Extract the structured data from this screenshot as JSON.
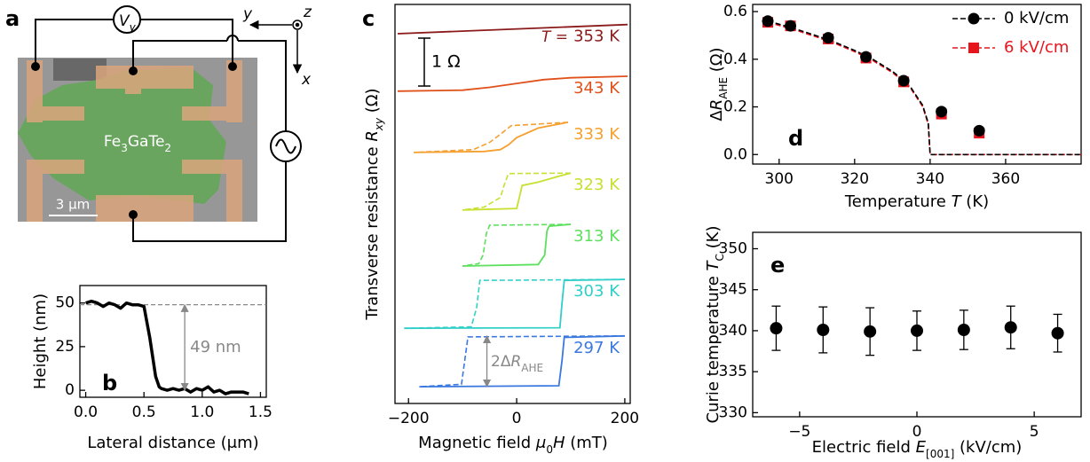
{
  "schematic": {
    "panel_label": "a",
    "voltmeter": [
      "V",
      "y"
    ],
    "material": [
      "Fe",
      "3",
      "GaTe",
      "2"
    ],
    "scale_bar": "3 μm",
    "axes": {
      "x": "x",
      "y": "y",
      "z": "z"
    }
  },
  "chart_data": [
    {
      "type": "line",
      "panel_label": "b",
      "xlabel": "Lateral distance (μm)",
      "ylabel": "Height (nm)",
      "color": "#000000",
      "x": [
        0,
        0.05,
        0.1,
        0.15,
        0.2,
        0.25,
        0.3,
        0.35,
        0.4,
        0.45,
        0.5,
        0.55,
        0.6,
        0.63,
        0.65,
        0.7,
        0.75,
        0.8,
        0.85,
        0.9,
        0.95,
        1.0,
        1.05,
        1.1,
        1.15,
        1.2,
        1.25,
        1.3,
        1.35,
        1.4
      ],
      "values": [
        50,
        51,
        50,
        48,
        50,
        49,
        47,
        50,
        49,
        49,
        48,
        30,
        8,
        2,
        1,
        0,
        1,
        0,
        1,
        -1,
        1,
        0,
        2,
        -1,
        0,
        -2,
        -1,
        -1,
        -1,
        -2
      ],
      "xlim": [
        -0.05,
        1.55
      ],
      "ylim": [
        -4,
        60
      ],
      "xticks": [
        {
          "value": 0,
          "label": "0.0"
        },
        0.5,
        {
          "value": 1,
          "label": "1.0"
        },
        1.5
      ],
      "yticks": [
        0,
        25,
        50
      ],
      "annotation": {
        "value": 49,
        "x": 0.85,
        "label": "49 nm"
      }
    },
    {
      "type": "hysteresis",
      "panel_label": "c",
      "xlabel": [
        "Magnetic field ",
        "μ",
        "0",
        "H",
        " (mT)"
      ],
      "ylabel": [
        "Transverse resistance ",
        "R",
        "xy",
        " (Ω)"
      ],
      "xlim": [
        -225,
        210
      ],
      "ylim": [
        0,
        8.33
      ],
      "xticks": [
        {
          "value": -200,
          "label": "−200"
        },
        0,
        200
      ],
      "scale_bar": {
        "value": 1,
        "label": "1 Ω"
      },
      "temperature_prefix": [
        "T",
        " ="
      ],
      "annotation": [
        "2Δ",
        "R",
        "AHE"
      ],
      "loops": [
        {
          "name": "353 K",
          "color": "#8b1a1a",
          "x_up": [
            -220,
            205
          ],
          "up": [
            7.72,
            7.91
          ]
        },
        {
          "name": "343 K",
          "color": "#e0501a",
          "x_up": [
            -220,
            -100,
            -50,
            0,
            50,
            100,
            205
          ],
          "up": [
            6.52,
            6.54,
            6.6,
            6.68,
            6.76,
            6.8,
            6.83
          ]
        },
        {
          "name": "333 K",
          "color": "#f5a030",
          "x_up": [
            -190,
            -60,
            -30,
            -15,
            0,
            40,
            95
          ],
          "up": [
            5.24,
            5.26,
            5.3,
            5.4,
            5.55,
            5.75,
            5.87
          ],
          "x_down": [
            95,
            -10,
            -30,
            -50,
            -80,
            -190
          ],
          "down": [
            5.87,
            5.8,
            5.62,
            5.45,
            5.3,
            5.24
          ]
        },
        {
          "name": "323 K",
          "color": "#c8e030",
          "x_up": [
            -100,
            0,
            5,
            10,
            40,
            80,
            100
          ],
          "up": [
            4.04,
            4.07,
            4.3,
            4.55,
            4.62,
            4.75,
            4.81
          ],
          "x_down": [
            100,
            -15,
            -22,
            -30,
            -60,
            -100
          ],
          "down": [
            4.81,
            4.8,
            4.6,
            4.3,
            4.1,
            4.04
          ]
        },
        {
          "name": "313 K",
          "color": "#5de05d",
          "x_up": [
            -100,
            40,
            52,
            56,
            60,
            100
          ],
          "up": [
            2.87,
            2.9,
            3.1,
            3.6,
            3.7,
            3.74
          ],
          "x_down": [
            100,
            -50,
            -56,
            -62,
            -70,
            -100
          ],
          "down": [
            3.74,
            3.72,
            3.55,
            3.1,
            2.92,
            2.87
          ]
        },
        {
          "name": "303 K",
          "color": "#30d0c8",
          "x_up": [
            -208,
            80,
            84,
            88,
            200
          ],
          "up": [
            1.57,
            1.58,
            2.1,
            2.57,
            2.59
          ],
          "x_down": [
            200,
            -68,
            -74,
            -84,
            -208
          ],
          "down": [
            2.59,
            2.57,
            2.0,
            1.6,
            1.57
          ]
        },
        {
          "name": "297 K",
          "color": "#3a78e0",
          "x_up": [
            -180,
            78,
            84,
            88,
            200
          ],
          "up": [
            0.35,
            0.37,
            0.9,
            1.38,
            1.41
          ],
          "x_down": [
            200,
            -90,
            -96,
            -102,
            -180
          ],
          "down": [
            1.41,
            1.39,
            0.9,
            0.4,
            0.35
          ]
        }
      ]
    },
    {
      "type": "scatter",
      "panel_label": "d",
      "xlabel": [
        "Temperature ",
        "T",
        " (K)"
      ],
      "ylabel": [
        "Δ",
        "R",
        "AHE",
        " (Ω)"
      ],
      "xlim": [
        293,
        380
      ],
      "ylim": [
        -0.04,
        0.63
      ],
      "xticks": [
        300,
        320,
        340,
        360
      ],
      "yticks": [
        {
          "value": 0,
          "label": "0.0"
        },
        0.2,
        0.4,
        0.6
      ],
      "legend": "upper right",
      "x": [
        297,
        303,
        313,
        323,
        333,
        343,
        353
      ],
      "fit_x": [
        297,
        300,
        305,
        310,
        313,
        315,
        320,
        323,
        325,
        330,
        333,
        335,
        338,
        339.5,
        340,
        350,
        360,
        370,
        380
      ],
      "series": [
        {
          "name": "0 kV/cm",
          "color": "#000000",
          "marker": "circle",
          "values": [
            0.56,
            0.54,
            0.49,
            0.41,
            0.31,
            0.18,
            0.1
          ],
          "fit": [
            0.56,
            0.547,
            0.524,
            0.498,
            0.481,
            0.47,
            0.437,
            0.414,
            0.398,
            0.349,
            0.311,
            0.279,
            0.207,
            0.132,
            0,
            0,
            0,
            0,
            0
          ]
        },
        {
          "name": "6 kV/cm",
          "color": "#e8141c",
          "marker": "square",
          "values": [
            0.555,
            0.54,
            0.485,
            0.405,
            0.305,
            0.17,
            0.09
          ],
          "fit": [
            0.555,
            0.542,
            0.519,
            0.493,
            0.476,
            0.465,
            0.432,
            0.409,
            0.393,
            0.344,
            0.306,
            0.274,
            0.202,
            0.127,
            0,
            0,
            0,
            0,
            0
          ]
        }
      ]
    },
    {
      "type": "errorbar",
      "panel_label": "e",
      "xlabel": [
        "Electric field ",
        "E",
        "[001]",
        " (kV/cm)"
      ],
      "ylabel": [
        "Curie temperature ",
        "T",
        "C",
        " (K)"
      ],
      "xlim": [
        -7,
        7
      ],
      "ylim": [
        329.5,
        352
      ],
      "xticks": [
        {
          "value": -5,
          "label": "−5"
        },
        0,
        5
      ],
      "yticks": [
        330,
        335,
        340,
        345,
        350
      ],
      "color": "#000000",
      "x": [
        -6,
        -4,
        -2,
        0,
        2,
        4,
        6
      ],
      "values": [
        340.3,
        340.1,
        339.9,
        340.0,
        340.1,
        340.4,
        339.7
      ],
      "errors": [
        2.7,
        2.8,
        2.9,
        2.4,
        2.4,
        2.6,
        2.3
      ]
    }
  ]
}
